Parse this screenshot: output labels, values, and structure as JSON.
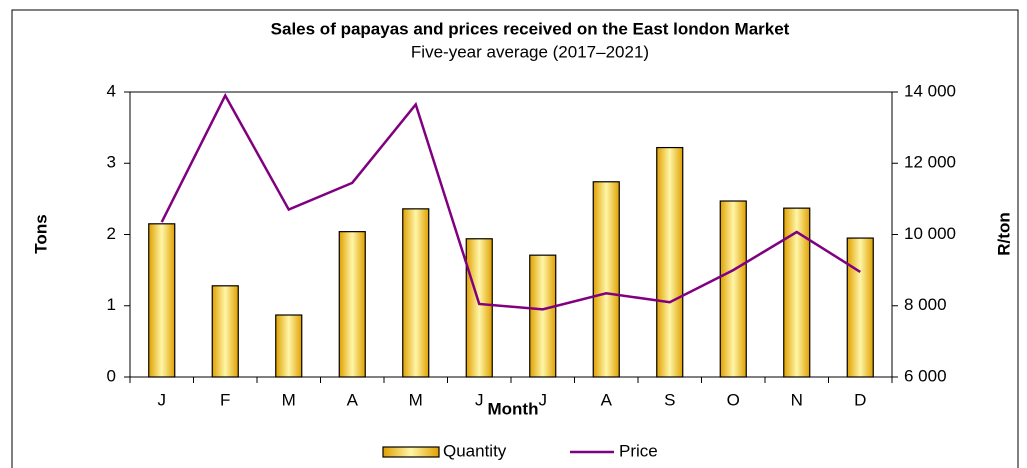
{
  "chart_data": {
    "type": "bar-line",
    "title": "Sales of papayas and prices received on the East london Market",
    "subtitle": "Five-year  average (2017–2021)",
    "x_label": "Month",
    "y_label": "Tons",
    "y2_label": "R/ton",
    "categories": [
      "J",
      "F",
      "M",
      "A",
      "M",
      "J",
      "J",
      "A",
      "S",
      "O",
      "N",
      "D"
    ],
    "series": [
      {
        "name": "Quantity",
        "type": "bar",
        "color": "#f5c400",
        "values": [
          2.15,
          1.28,
          0.87,
          2.04,
          2.36,
          1.94,
          1.71,
          2.74,
          3.22,
          2.47,
          2.37,
          1.95
        ]
      },
      {
        "name": "Price",
        "type": "line",
        "axis": "y2",
        "color": "#800080",
        "values": [
          10350,
          13900,
          10700,
          11450,
          13650,
          8050,
          7900,
          8350,
          8100,
          9000,
          10070,
          8950
        ]
      }
    ],
    "ylim": [
      0,
      4
    ],
    "yticks": [
      0,
      1,
      2,
      3,
      4
    ],
    "y2lim": [
      6000,
      14000
    ],
    "y2ticks": [
      {
        "value": 6000,
        "label": "6 000"
      },
      {
        "value": 8000,
        "label": "8 000"
      },
      {
        "value": 10000,
        "label": "10 000"
      },
      {
        "value": 12000,
        "label": "12 000"
      },
      {
        "value": 14000,
        "label": "14 000"
      }
    ],
    "legend": "bottom"
  }
}
